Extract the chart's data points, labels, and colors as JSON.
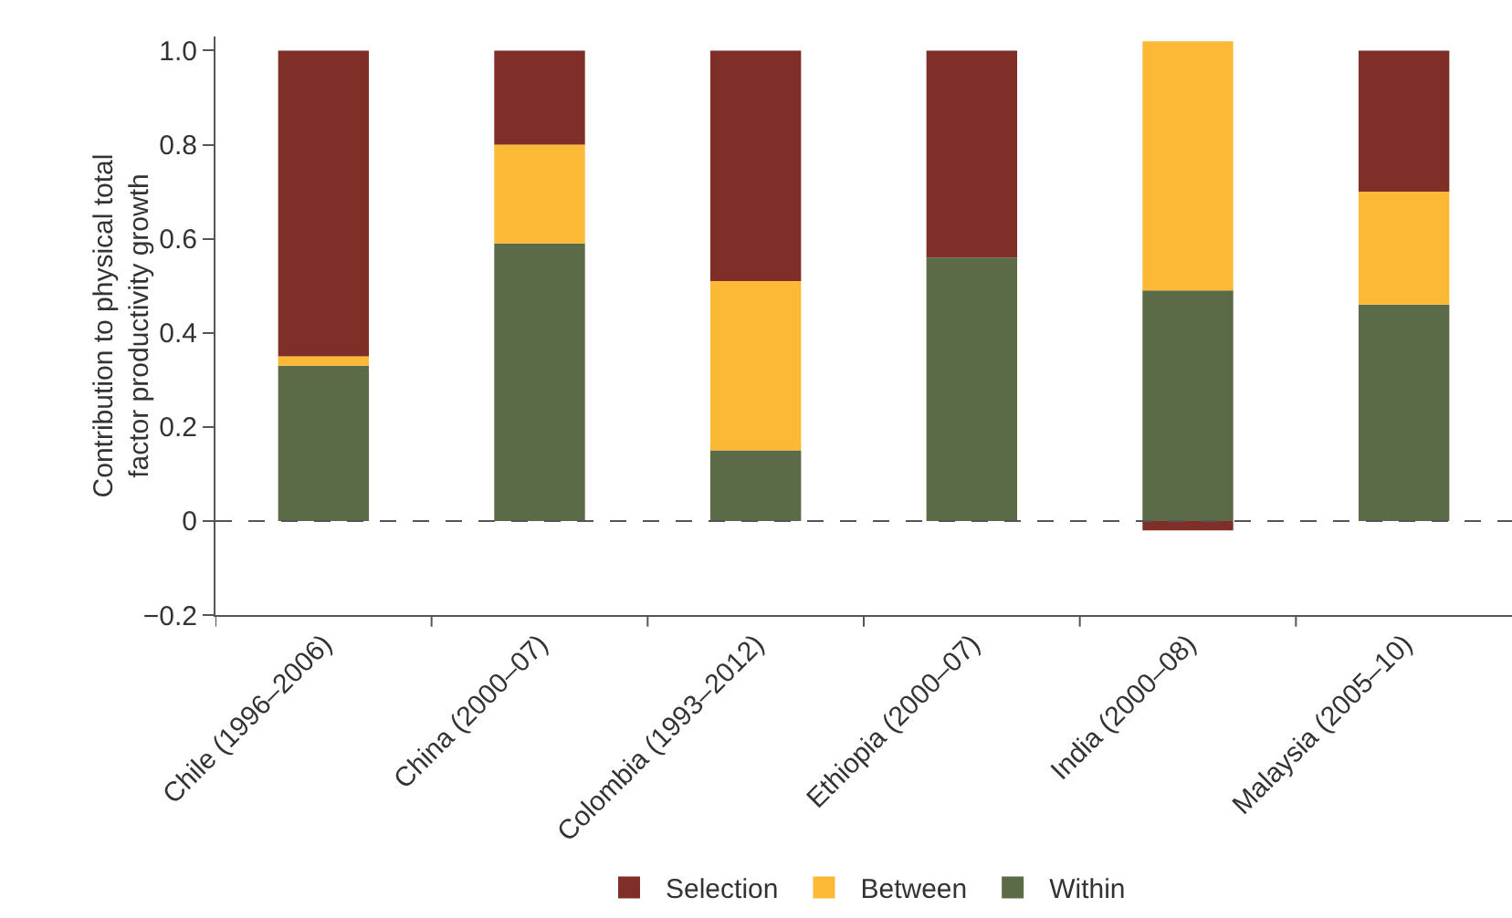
{
  "chart_data": {
    "type": "bar",
    "stacked": true,
    "ylabel": "Contribution to physical total factor productivity growth",
    "categories": [
      "Chile (1996–2006)",
      "China (2000–07)",
      "Colombia (1993–2012)",
      "Ethiopia (2000–07)",
      "India (2000–08)",
      "Malaysia (2005–10)"
    ],
    "series": [
      {
        "name": "Within",
        "color": "#5c6b47",
        "values": [
          0.33,
          0.59,
          0.15,
          0.56,
          0.49,
          0.46
        ]
      },
      {
        "name": "Between",
        "color": "#fbb936",
        "values": [
          0.02,
          0.21,
          0.36,
          0.0,
          0.53,
          0.24
        ]
      },
      {
        "name": "Selection",
        "color": "#7f2f27",
        "values": [
          0.65,
          0.2,
          0.49,
          0.44,
          -0.02,
          0.3
        ]
      }
    ],
    "ylim": [
      -0.2,
      1.03
    ],
    "yticks": [
      {
        "value": -0.2,
        "label": "−0.2"
      },
      0,
      {
        "value": 0.2,
        "label": "0.2"
      },
      {
        "value": 0.4,
        "label": "0.4"
      },
      {
        "value": 0.6,
        "label": "0.6"
      },
      {
        "value": 0.8,
        "label": "0.8"
      },
      {
        "value": 1,
        "label": "1.0"
      }
    ],
    "ref_lines": [
      {
        "axis": "y",
        "value": 0,
        "label": null,
        "color": "#555555",
        "line_style": "dashed"
      }
    ],
    "grid": false,
    "legend": "bottom"
  }
}
